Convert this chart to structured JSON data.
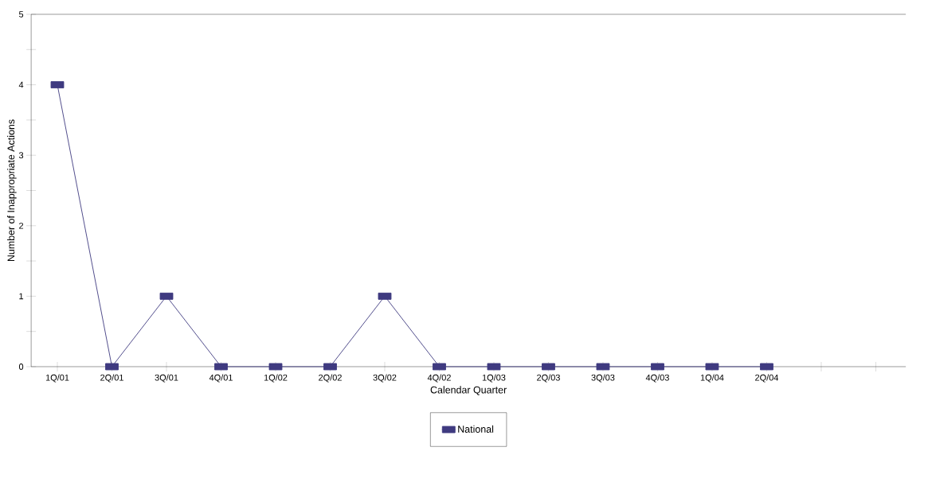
{
  "chart_data": {
    "type": "line",
    "xlabel": "Calendar Quarter",
    "ylabel": "Number of Inappropriate Actions",
    "categories": [
      "1Q/01",
      "2Q/01",
      "3Q/01",
      "4Q/01",
      "1Q/02",
      "2Q/02",
      "3Q/02",
      "4Q/02",
      "1Q/03",
      "2Q/03",
      "3Q/03",
      "4Q/03",
      "1Q/04",
      "2Q/04",
      null,
      null
    ],
    "series": [
      {
        "name": "National",
        "color": "#3f3a80",
        "values": [
          4,
          0,
          1,
          0,
          0,
          0,
          1,
          0,
          0,
          0,
          0,
          0,
          0,
          0,
          null,
          null
        ]
      }
    ],
    "ylim": [
      0,
      5
    ],
    "yticks": [
      0,
      {
        "value": 0.5,
        "label": null
      },
      1,
      {
        "value": 1.5,
        "label": null
      },
      2,
      {
        "value": 2.5,
        "label": null
      },
      3,
      {
        "value": 3.5,
        "label": null
      },
      4,
      {
        "value": 4.5,
        "label": null
      },
      5
    ],
    "grid": false,
    "legend": "bottom",
    "marker": "square",
    "line_style": "solid"
  }
}
